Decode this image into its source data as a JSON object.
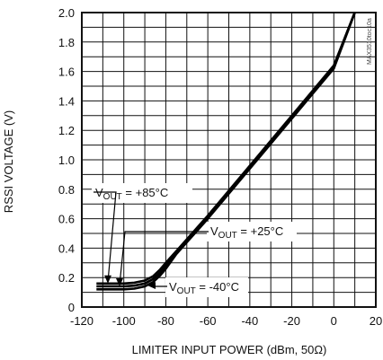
{
  "chart_data": {
    "type": "line",
    "title": "",
    "xlabel": "LIMITER INPUT POWER (dBm, 50Ω)",
    "ylabel": "RSSI VOLTAGE (V)",
    "xlim": [
      -120,
      20
    ],
    "ylim": [
      0,
      2.0
    ],
    "x_ticks": [
      -120,
      -100,
      -80,
      -60,
      -40,
      -20,
      0,
      20
    ],
    "y_ticks": [
      0,
      0.2,
      0.4,
      0.6,
      0.8,
      1.0,
      1.2,
      1.4,
      1.6,
      1.8,
      2.0
    ],
    "x_tick_labels": [
      "-120",
      "-100",
      "-80",
      "-60",
      "-40",
      "-20",
      "0",
      "20"
    ],
    "y_tick_labels": [
      "0",
      "0.2",
      "0.4",
      "0.6",
      "0.8",
      "1.0",
      "1.2",
      "1.4",
      "1.6",
      "1.8",
      "2.0"
    ],
    "grid": true,
    "watermark": "MAX3510toc10a",
    "series": [
      {
        "name": "VOUT = +85°C",
        "x": [
          -113,
          -100,
          -95,
          -90,
          -86,
          -83,
          -80,
          -75,
          -70,
          -65,
          -60,
          -50,
          -40,
          -30,
          -20,
          -10,
          0,
          10
        ],
        "y": [
          0.16,
          0.16,
          0.165,
          0.18,
          0.21,
          0.25,
          0.3,
          0.38,
          0.46,
          0.54,
          0.62,
          0.79,
          0.96,
          1.13,
          1.3,
          1.47,
          1.64,
          2.0
        ]
      },
      {
        "name": "VOUT = +25°C",
        "x": [
          -113,
          -100,
          -95,
          -90,
          -86,
          -83,
          -80,
          -75,
          -70,
          -65,
          -60,
          -50,
          -40,
          -30,
          -20,
          -10,
          0,
          10
        ],
        "y": [
          0.14,
          0.14,
          0.145,
          0.16,
          0.19,
          0.23,
          0.28,
          0.37,
          0.45,
          0.53,
          0.61,
          0.78,
          0.95,
          1.12,
          1.29,
          1.46,
          1.63,
          2.0
        ]
      },
      {
        "name": "VOUT = -40°C",
        "x": [
          -113,
          -100,
          -95,
          -90,
          -86,
          -83,
          -80,
          -75,
          -70,
          -65,
          -60,
          -50,
          -40,
          -30,
          -20,
          -10,
          0,
          10
        ],
        "y": [
          0.12,
          0.12,
          0.125,
          0.14,
          0.17,
          0.21,
          0.26,
          0.36,
          0.44,
          0.52,
          0.6,
          0.77,
          0.94,
          1.11,
          1.28,
          1.45,
          1.62,
          2.0
        ]
      }
    ],
    "annotations": [
      {
        "main": "V",
        "sub": "OUT",
        "rest": " = +85°C"
      },
      {
        "main": "V",
        "sub": "OUT",
        "rest": " = +25°C"
      },
      {
        "main": "V",
        "sub": "OUT",
        "rest": " = -40°C"
      }
    ]
  }
}
